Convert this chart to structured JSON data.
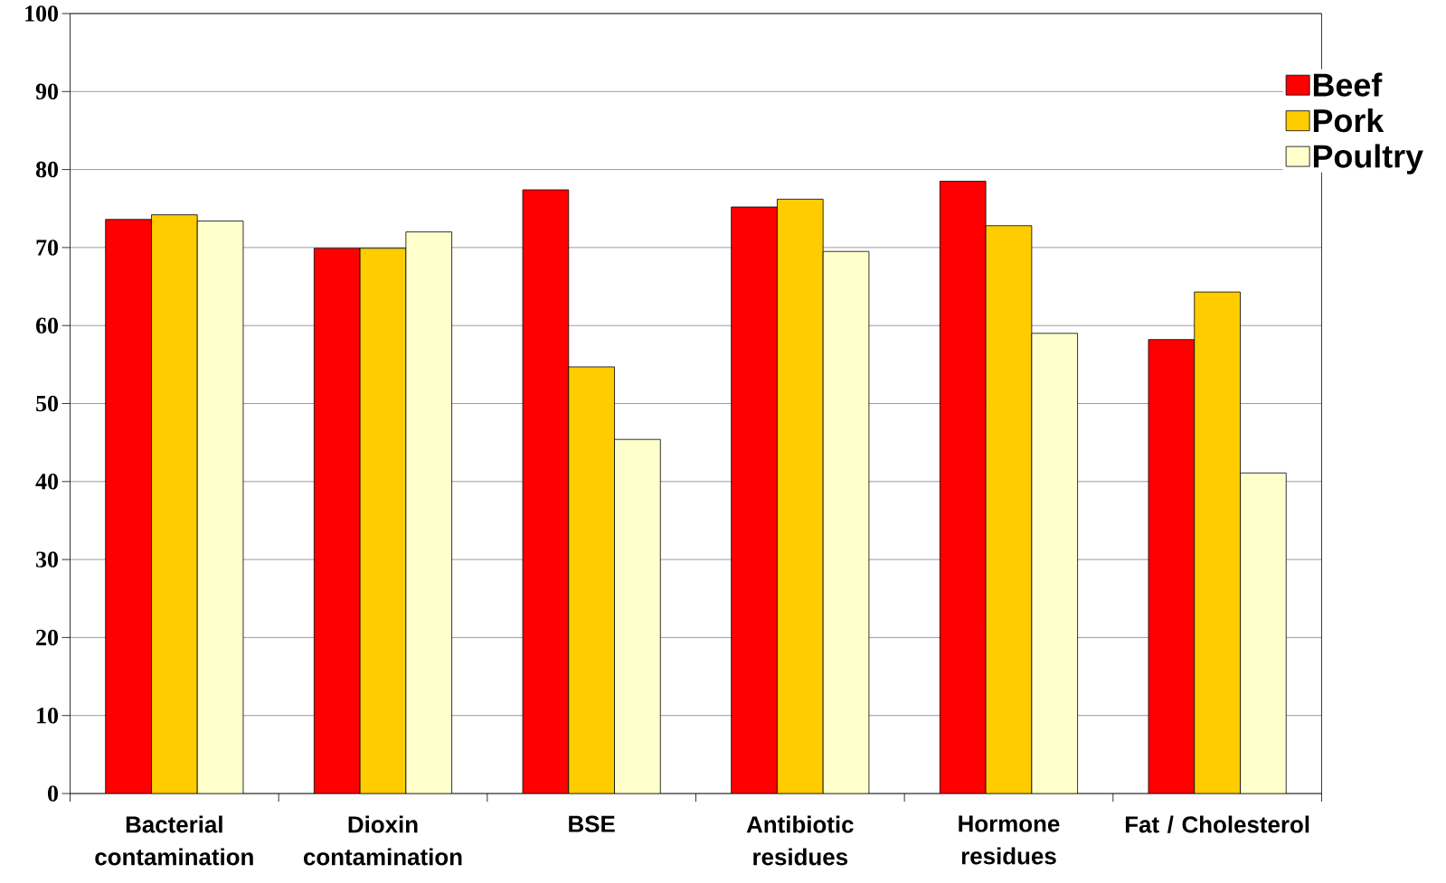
{
  "chart_data": {
    "type": "bar",
    "categories": [
      "Bacterial contamination",
      "Dioxin contamination",
      "BSE",
      "Antibiotic residues",
      "Hormone residues",
      "Fat / Cholesterol"
    ],
    "series": [
      {
        "name": "Beef",
        "color": "#ff0000",
        "values": [
          73.6,
          69.9,
          77.4,
          75.2,
          78.5,
          58.2
        ]
      },
      {
        "name": "Pork",
        "color": "#ffcc00",
        "values": [
          74.2,
          69.9,
          54.7,
          76.2,
          72.8,
          64.3
        ]
      },
      {
        "name": "Poultry",
        "color": "#ffffcc",
        "values": [
          73.4,
          72.0,
          45.4,
          69.5,
          59.0,
          41.1
        ]
      }
    ],
    "ylim": [
      0,
      100
    ],
    "yticks": [
      0,
      10,
      20,
      30,
      40,
      50,
      60,
      70,
      80,
      90,
      100
    ],
    "grid": "y",
    "legend": "right"
  }
}
